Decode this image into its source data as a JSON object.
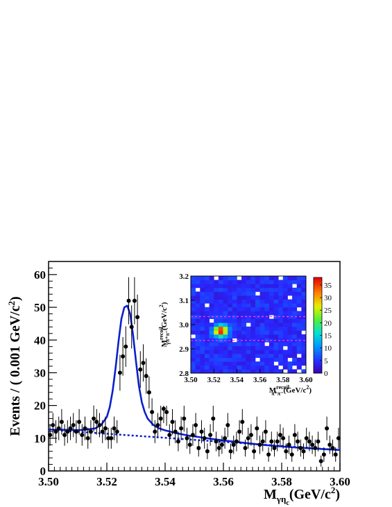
{
  "chart_data": [
    {
      "type": "scatter",
      "xlabel": "M",
      "xlabel_sub": "γη",
      "xlabel_subsub": "c",
      "xlabel_unit": "(GeV/c",
      "xlabel_unit_sup": "2",
      "xlabel_unit_close": ")",
      "ylabel": "Events / ( 0.001 GeV/c",
      "ylabel_sup": "2",
      "ylabel_close": ")",
      "xlim": [
        3.5,
        3.6
      ],
      "ylim": [
        0,
        64
      ],
      "xticks": [
        "3.50",
        "3.52",
        "3.54",
        "3.56",
        "3.58",
        "3.60"
      ],
      "yticks": [
        "0",
        "10",
        "20",
        "30",
        "40",
        "50",
        "60"
      ],
      "series": [
        {
          "kind": "data",
          "color": "#000000",
          "x": [
            3.5005,
            3.5015,
            3.5025,
            3.5035,
            3.5045,
            3.5055,
            3.5065,
            3.5075,
            3.5085,
            3.5095,
            3.5105,
            3.5115,
            3.5125,
            3.5135,
            3.5145,
            3.5155,
            3.5165,
            3.5175,
            3.5185,
            3.5195,
            3.5205,
            3.5215,
            3.5225,
            3.5235,
            3.5245,
            3.5255,
            3.5265,
            3.5275,
            3.5285,
            3.5295,
            3.5305,
            3.5315,
            3.5325,
            3.5335,
            3.5345,
            3.5355,
            3.5365,
            3.5375,
            3.5385,
            3.5395,
            3.5405,
            3.5415,
            3.5425,
            3.5435,
            3.5445,
            3.5455,
            3.5465,
            3.5475,
            3.5485,
            3.5495,
            3.5505,
            3.5515,
            3.5525,
            3.5535,
            3.5545,
            3.5555,
            3.5565,
            3.5575,
            3.5585,
            3.5595,
            3.5605,
            3.5615,
            3.5625,
            3.5635,
            3.5645,
            3.5655,
            3.5665,
            3.5675,
            3.5685,
            3.5695,
            3.5705,
            3.5715,
            3.5725,
            3.5735,
            3.5745,
            3.5755,
            3.5765,
            3.5775,
            3.5785,
            3.5795,
            3.5805,
            3.5815,
            3.5825,
            3.5835,
            3.5845,
            3.5855,
            3.5865,
            3.5875,
            3.5885,
            3.5895,
            3.5905,
            3.5915,
            3.5925,
            3.5935,
            3.5945,
            3.5955,
            3.5965,
            3.5975,
            3.5985,
            3.5995
          ],
          "y": [
            11,
            14,
            12,
            13,
            15,
            11,
            12,
            13,
            14,
            12,
            15,
            11,
            13,
            10,
            12,
            16,
            15,
            14,
            12,
            13,
            10,
            10,
            13,
            12,
            30,
            35,
            38,
            52,
            44,
            52,
            47,
            31,
            33,
            29,
            24,
            18,
            12,
            14,
            16,
            19,
            18,
            11,
            15,
            12,
            9,
            13,
            16,
            10,
            8,
            11,
            14,
            7,
            12,
            10,
            6,
            11,
            16,
            9,
            7,
            8,
            10,
            14,
            6,
            8,
            9,
            12,
            15,
            7,
            10,
            11,
            6,
            13,
            8,
            9,
            12,
            5,
            9,
            7,
            9,
            11,
            10,
            6,
            8,
            5,
            11,
            9,
            7,
            6,
            10,
            9,
            8,
            7,
            9,
            3,
            5,
            13,
            8,
            7,
            5,
            10
          ],
          "yerr": [
            3.3,
            3.7,
            3.5,
            3.6,
            3.9,
            3.3,
            3.5,
            3.6,
            3.7,
            3.5,
            3.9,
            3.3,
            3.6,
            3.2,
            3.5,
            4.0,
            3.9,
            3.7,
            3.5,
            3.6,
            3.2,
            3.2,
            3.6,
            3.5,
            5.5,
            5.9,
            6.2,
            7.2,
            6.6,
            7.2,
            6.9,
            5.6,
            5.7,
            5.4,
            4.9,
            4.2,
            3.5,
            3.7,
            4.0,
            4.4,
            4.2,
            3.3,
            3.9,
            3.5,
            3.0,
            3.6,
            4.0,
            3.2,
            2.8,
            3.3,
            3.7,
            2.6,
            3.5,
            3.2,
            2.4,
            3.3,
            4.0,
            3.0,
            2.6,
            2.8,
            3.2,
            3.7,
            2.4,
            2.8,
            3.0,
            3.5,
            3.9,
            2.6,
            3.2,
            3.3,
            2.4,
            3.6,
            2.8,
            3.0,
            3.5,
            2.2,
            3.0,
            2.6,
            3.0,
            3.3,
            3.2,
            2.4,
            2.8,
            2.2,
            3.3,
            3.0,
            2.6,
            2.4,
            3.2,
            3.0,
            2.8,
            2.6,
            3.0,
            1.7,
            2.2,
            3.6,
            2.8,
            2.6,
            2.2,
            3.2
          ]
        },
        {
          "kind": "total-fit",
          "color": "#0a1fd0",
          "x": [
            3.5,
            3.504,
            3.508,
            3.512,
            3.516,
            3.518,
            3.52,
            3.521,
            3.522,
            3.523,
            3.524,
            3.525,
            3.526,
            3.527,
            3.528,
            3.529,
            3.53,
            3.531,
            3.532,
            3.533,
            3.534,
            3.536,
            3.538,
            3.54,
            3.544,
            3.548,
            3.552,
            3.556,
            3.56,
            3.566,
            3.572,
            3.578,
            3.584,
            3.59,
            3.596,
            3.6
          ],
          "y": [
            12.6,
            12.6,
            12.5,
            12.5,
            13.0,
            14.0,
            16.5,
            19.5,
            24.5,
            31.5,
            39.5,
            46.5,
            50.0,
            50.5,
            48.0,
            41.5,
            33.5,
            26.0,
            21.0,
            18.0,
            16.0,
            14.0,
            13.0,
            12.4,
            11.5,
            10.8,
            10.3,
            9.8,
            9.3,
            8.7,
            8.1,
            7.6,
            7.2,
            6.9,
            6.6,
            6.4
          ]
        },
        {
          "kind": "background",
          "color": "#0a1fd0",
          "x": [
            3.5,
            3.6
          ],
          "y": [
            12.6,
            6.4
          ]
        }
      ]
    },
    {
      "type": "heatmap",
      "xlabel": "M",
      "xlabel_sup": "recoil",
      "xlabel_sub": "π⁺π⁻",
      "xlabel_unit": "(GeV/c",
      "xlabel_unit_sup": "2",
      "xlabel_unit_close": ")",
      "ylabel": "M",
      "ylabel_sup": "recoil",
      "ylabel_sub": "γπ⁺π⁻",
      "ylabel_unit": "(GeV/c",
      "ylabel_unit_sup": "2",
      "ylabel_unit_close": ")",
      "xlim": [
        3.5,
        3.6
      ],
      "ylim": [
        2.8,
        3.2
      ],
      "zlim": [
        0,
        38
      ],
      "xticks": [
        "3.50",
        "3.52",
        "3.54",
        "3.56",
        "3.58",
        "3.60"
      ],
      "yticks": [
        "2.8",
        "2.9",
        "3.0",
        "3.1",
        "3.2"
      ],
      "colorbar_ticks": [
        "0",
        "5",
        "10",
        "15",
        "20",
        "25",
        "30",
        "35"
      ],
      "nx": 25,
      "ny": 25,
      "background_level": 3,
      "hotspot": {
        "x": 3.526,
        "y": 2.975,
        "peak": 36
      },
      "empty_cells": [
        [
          10,
          24
        ],
        [
          5,
          24
        ],
        [
          19,
          24
        ],
        [
          22,
          22
        ],
        [
          1,
          21
        ],
        [
          14,
          20
        ],
        [
          21,
          19
        ],
        [
          3,
          17
        ],
        [
          23,
          16
        ],
        [
          17,
          14
        ],
        [
          4,
          13
        ],
        [
          12,
          12
        ],
        [
          24,
          10
        ],
        [
          0,
          9
        ],
        [
          9,
          8
        ],
        [
          16,
          7
        ],
        [
          20,
          6
        ],
        [
          23,
          4
        ],
        [
          14,
          3
        ],
        [
          21,
          3
        ],
        [
          18,
          2
        ],
        [
          22,
          1
        ],
        [
          24,
          1
        ],
        [
          20,
          0
        ],
        [
          23,
          0
        ],
        [
          19,
          1
        ]
      ],
      "selection_lines": [
        3.033,
        2.935
      ],
      "selection_color": "#ff33ff"
    }
  ]
}
